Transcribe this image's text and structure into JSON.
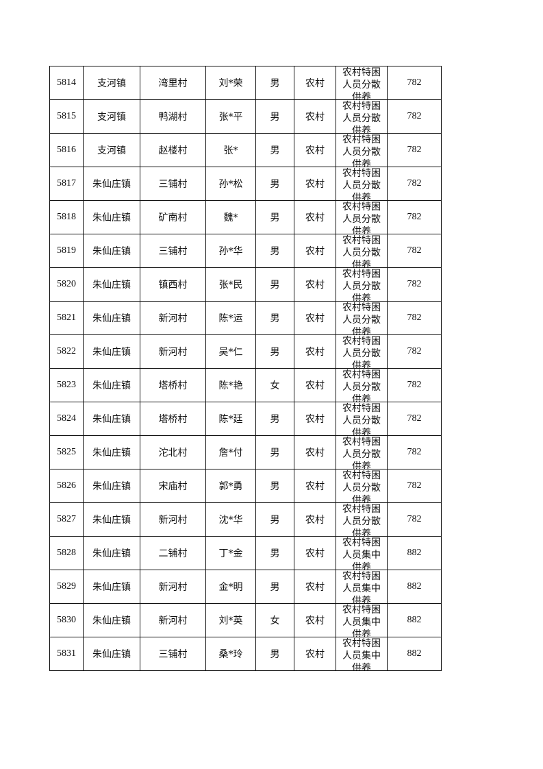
{
  "table": {
    "rows": [
      [
        "5814",
        "支河镇",
        "湾里村",
        "刘*荣",
        "男",
        "农村",
        "农村特困人员分散供养",
        "782"
      ],
      [
        "5815",
        "支河镇",
        "鸭湖村",
        "张*平",
        "男",
        "农村",
        "农村特困人员分散供养",
        "782"
      ],
      [
        "5816",
        "支河镇",
        "赵楼村",
        "张*",
        "男",
        "农村",
        "农村特困人员分散供养",
        "782"
      ],
      [
        "5817",
        "朱仙庄镇",
        "三铺村",
        "孙*松",
        "男",
        "农村",
        "农村特困人员分散供养",
        "782"
      ],
      [
        "5818",
        "朱仙庄镇",
        "矿南村",
        "魏*",
        "男",
        "农村",
        "农村特困人员分散供养",
        "782"
      ],
      [
        "5819",
        "朱仙庄镇",
        "三铺村",
        "孙*华",
        "男",
        "农村",
        "农村特困人员分散供养",
        "782"
      ],
      [
        "5820",
        "朱仙庄镇",
        "镇西村",
        "张*民",
        "男",
        "农村",
        "农村特困人员分散供养",
        "782"
      ],
      [
        "5821",
        "朱仙庄镇",
        "新河村",
        "陈*运",
        "男",
        "农村",
        "农村特困人员分散供养",
        "782"
      ],
      [
        "5822",
        "朱仙庄镇",
        "新河村",
        "吴*仁",
        "男",
        "农村",
        "农村特困人员分散供养",
        "782"
      ],
      [
        "5823",
        "朱仙庄镇",
        "塔桥村",
        "陈*艳",
        "女",
        "农村",
        "农村特困人员分散供养",
        "782"
      ],
      [
        "5824",
        "朱仙庄镇",
        "塔桥村",
        "陈*廷",
        "男",
        "农村",
        "农村特困人员分散供养",
        "782"
      ],
      [
        "5825",
        "朱仙庄镇",
        "沱北村",
        "詹*付",
        "男",
        "农村",
        "农村特困人员分散供养",
        "782"
      ],
      [
        "5826",
        "朱仙庄镇",
        "宋庙村",
        "郭*勇",
        "男",
        "农村",
        "农村特困人员分散供养",
        "782"
      ],
      [
        "5827",
        "朱仙庄镇",
        "新河村",
        "沈*华",
        "男",
        "农村",
        "农村特困人员分散供养",
        "782"
      ],
      [
        "5828",
        "朱仙庄镇",
        "二铺村",
        "丁*金",
        "男",
        "农村",
        "农村特困人员集中供养",
        "882"
      ],
      [
        "5829",
        "朱仙庄镇",
        "新河村",
        "金*明",
        "男",
        "农村",
        "农村特困人员集中供养",
        "882"
      ],
      [
        "5830",
        "朱仙庄镇",
        "新河村",
        "刘*英",
        "女",
        "农村",
        "农村特困人员集中供养",
        "882"
      ],
      [
        "5831",
        "朱仙庄镇",
        "三铺村",
        "桑*玲",
        "男",
        "农村",
        "农村特困人员集中供养",
        "882"
      ]
    ]
  }
}
